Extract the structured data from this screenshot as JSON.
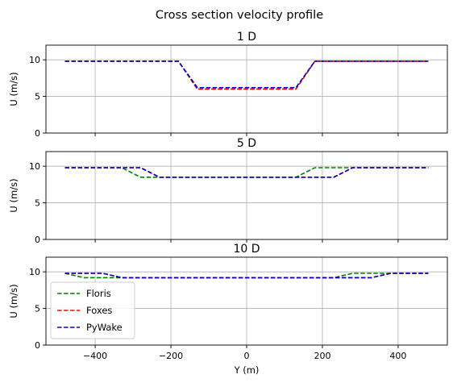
{
  "figure": {
    "title": "Cross section velocity profile"
  },
  "colors": {
    "Floris": "#008000",
    "Foxes": "#ff0000",
    "PyWake": "#0000cc",
    "grid": "#b0b0b0"
  },
  "chart_data": [
    {
      "type": "line",
      "title": "1 D",
      "xlabel": "",
      "ylabel": "U (m/s)",
      "xlim": [
        -530,
        530
      ],
      "ylim": [
        0,
        12
      ],
      "xticks": [
        -400,
        -200,
        0,
        200,
        400
      ],
      "yticks": [
        0,
        5,
        10
      ],
      "show_xticklabels": false,
      "grid": true,
      "series": [
        {
          "name": "Floris",
          "style": "dashed",
          "x": [
            -480,
            -180,
            -130,
            130,
            180,
            480
          ],
          "y": [
            9.8,
            9.8,
            6.0,
            6.0,
            9.8,
            9.8
          ]
        },
        {
          "name": "Foxes",
          "style": "dashed",
          "x": [
            -480,
            -180,
            -130,
            130,
            180,
            480
          ],
          "y": [
            9.8,
            9.8,
            6.0,
            6.0,
            9.8,
            9.8
          ]
        },
        {
          "name": "PyWake",
          "style": "dashed",
          "x": [
            -480,
            -180,
            -130,
            130,
            180,
            480
          ],
          "y": [
            9.8,
            9.8,
            6.2,
            6.2,
            9.8,
            9.8
          ]
        }
      ]
    },
    {
      "type": "line",
      "title": "5 D",
      "xlabel": "",
      "ylabel": "U (m/s)",
      "xlim": [
        -530,
        530
      ],
      "ylim": [
        0,
        12
      ],
      "xticks": [
        -400,
        -200,
        0,
        200,
        400
      ],
      "yticks": [
        0,
        5,
        10
      ],
      "show_xticklabels": false,
      "grid": true,
      "series": [
        {
          "name": "Floris",
          "style": "dashed",
          "x": [
            -480,
            -330,
            -280,
            130,
            180,
            480
          ],
          "y": [
            9.8,
            9.8,
            8.5,
            8.5,
            9.8,
            9.8
          ]
        },
        {
          "name": "Foxes",
          "style": "dashed",
          "x": [
            -480,
            -280,
            -230,
            230,
            280,
            480
          ],
          "y": [
            9.8,
            9.8,
            8.5,
            8.5,
            9.8,
            9.8
          ]
        },
        {
          "name": "PyWake",
          "style": "dashed",
          "x": [
            -480,
            -280,
            -230,
            230,
            280,
            480
          ],
          "y": [
            9.8,
            9.8,
            8.5,
            8.5,
            9.8,
            9.8
          ]
        }
      ]
    },
    {
      "type": "line",
      "title": "10 D",
      "xlabel": "Y (m)",
      "ylabel": "U (m/s)",
      "xlim": [
        -530,
        530
      ],
      "ylim": [
        0,
        12
      ],
      "xticks": [
        -400,
        -200,
        0,
        200,
        400
      ],
      "yticks": [
        0,
        5,
        10
      ],
      "show_xticklabels": true,
      "grid": true,
      "legend": {
        "position": "lower-left"
      },
      "series": [
        {
          "name": "Floris",
          "style": "dashed",
          "x": [
            -480,
            -430,
            -380,
            230,
            280,
            480
          ],
          "y": [
            9.8,
            9.2,
            9.2,
            9.2,
            9.8,
            9.8
          ]
        },
        {
          "name": "Foxes",
          "style": "dashed",
          "x": [
            -480,
            -380,
            -330,
            330,
            380,
            480
          ],
          "y": [
            9.8,
            9.8,
            9.2,
            9.2,
            9.8,
            9.8
          ]
        },
        {
          "name": "PyWake",
          "style": "dashed",
          "x": [
            -480,
            -380,
            -330,
            330,
            380,
            480
          ],
          "y": [
            9.8,
            9.8,
            9.2,
            9.2,
            9.8,
            9.8
          ]
        }
      ]
    }
  ]
}
